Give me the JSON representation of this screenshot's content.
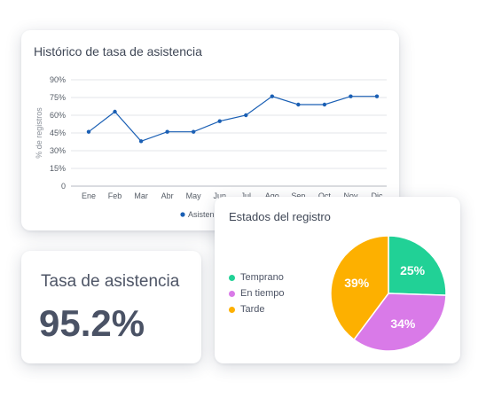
{
  "line_card": {
    "title": "Histórico de tasa de asistencia"
  },
  "rate_card": {
    "label": "Tasa de asistencia",
    "value": "95.2%"
  },
  "pie_card": {
    "title": "Estados del registro"
  },
  "chart_data": [
    {
      "type": "line",
      "title": "Histórico de tasa de asistencia",
      "ylabel": "% de registros",
      "xlabel": "",
      "categories": [
        "Ene",
        "Feb",
        "Mar",
        "Abr",
        "May",
        "Jun",
        "Jul",
        "Ago",
        "Sep",
        "Oct",
        "Nov",
        "Dic"
      ],
      "y_ticks": [
        "0",
        "15%",
        "30%",
        "45%",
        "60%",
        "75%",
        "90%"
      ],
      "ylim": [
        0,
        90
      ],
      "grid": true,
      "legend_position": "bottom",
      "series": [
        {
          "name": "Asisten",
          "color": "#1a5fb4",
          "values": [
            46,
            63,
            38,
            46,
            46,
            55,
            60,
            76,
            69,
            69,
            76,
            76
          ]
        }
      ]
    },
    {
      "type": "pie",
      "title": "Estados del registro",
      "legend_position": "left",
      "labels": [
        "Temprano",
        "En tiempo",
        "Tarde"
      ],
      "values": [
        25,
        34,
        39
      ],
      "display_labels": [
        "25%",
        "34%",
        "39%"
      ],
      "colors": [
        "#21d196",
        "#d97ae8",
        "#fdb000"
      ]
    }
  ]
}
